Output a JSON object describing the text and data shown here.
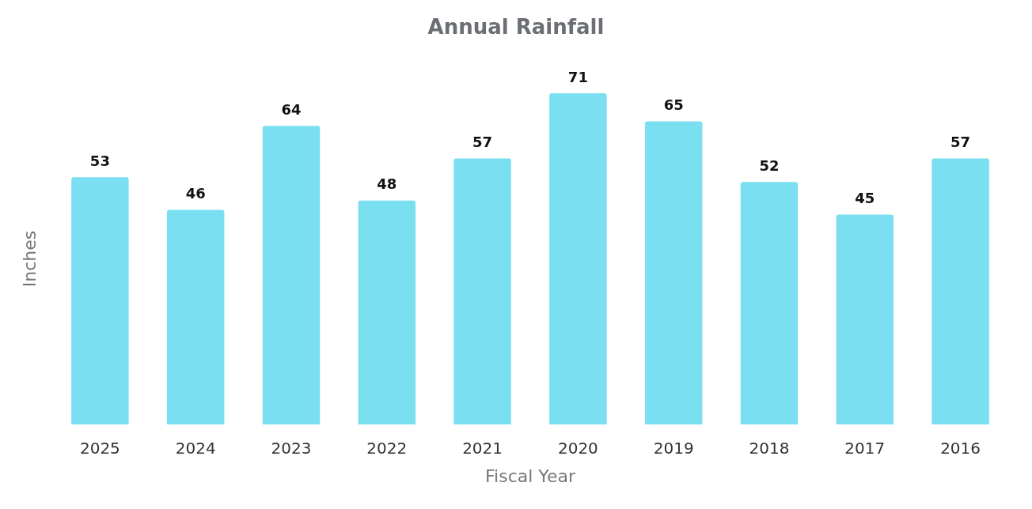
{
  "chart_data": {
    "type": "bar",
    "title": "Annual Rainfall",
    "xlabel": "Fiscal Year",
    "ylabel": "Inches",
    "categories": [
      "2025",
      "2024",
      "2023",
      "2022",
      "2021",
      "2020",
      "2019",
      "2018",
      "2017",
      "2016"
    ],
    "values": [
      53,
      46,
      64,
      48,
      57,
      71,
      65,
      52,
      45,
      57
    ],
    "color": "#7adff0",
    "data_labels": true
  }
}
